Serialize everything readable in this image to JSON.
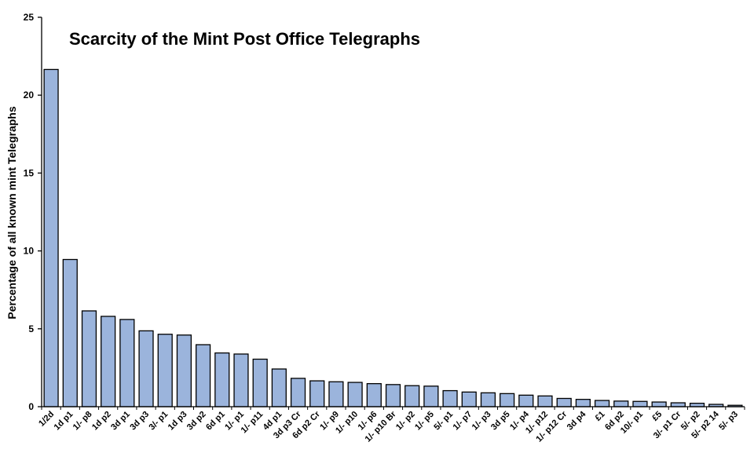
{
  "chart_data": {
    "type": "bar",
    "title": "Scarcity of the Mint Post Office Telegraphs",
    "xlabel": "",
    "ylabel": "Percentage of all known mint Telegraphs",
    "ylim": [
      0,
      25
    ],
    "yticks": [
      0,
      5,
      10,
      15,
      20,
      25
    ],
    "grid": false,
    "legend": "none",
    "bar_color": "#9bb4dc",
    "bar_edge_color": "#000000",
    "categories": [
      "1/2d",
      "1d p1",
      "1/- p8",
      "1d p2",
      "3d p1",
      "3d p3",
      "3/- p1",
      "1d p3",
      "3d p2",
      "6d p1",
      "1/- p1",
      "1/- p11",
      "4d p1",
      "3d p3 Cr",
      "6d p2 Cr",
      "1/- p9",
      "1/- p10",
      "1/- p6",
      "1/- p10 Br",
      "1/- p2",
      "1/- p5",
      "5/- p1",
      "1/- p7",
      "1/- p3",
      "3d p5",
      "1/- p4",
      "1/- p12",
      "1/- p12 Cr",
      "3d p4",
      "£1",
      "6d p2",
      "10/- p1",
      "£5",
      "3/- p1 Cr",
      "5/- p2",
      "5/- p2 14",
      "5/- p3"
    ],
    "values": [
      21.65,
      9.45,
      6.15,
      5.8,
      5.6,
      4.87,
      4.65,
      4.6,
      3.98,
      3.45,
      3.38,
      3.05,
      2.42,
      1.82,
      1.66,
      1.6,
      1.56,
      1.48,
      1.42,
      1.35,
      1.32,
      1.03,
      0.94,
      0.89,
      0.84,
      0.74,
      0.69,
      0.53,
      0.47,
      0.4,
      0.36,
      0.34,
      0.3,
      0.25,
      0.22,
      0.15,
      0.09
    ]
  }
}
